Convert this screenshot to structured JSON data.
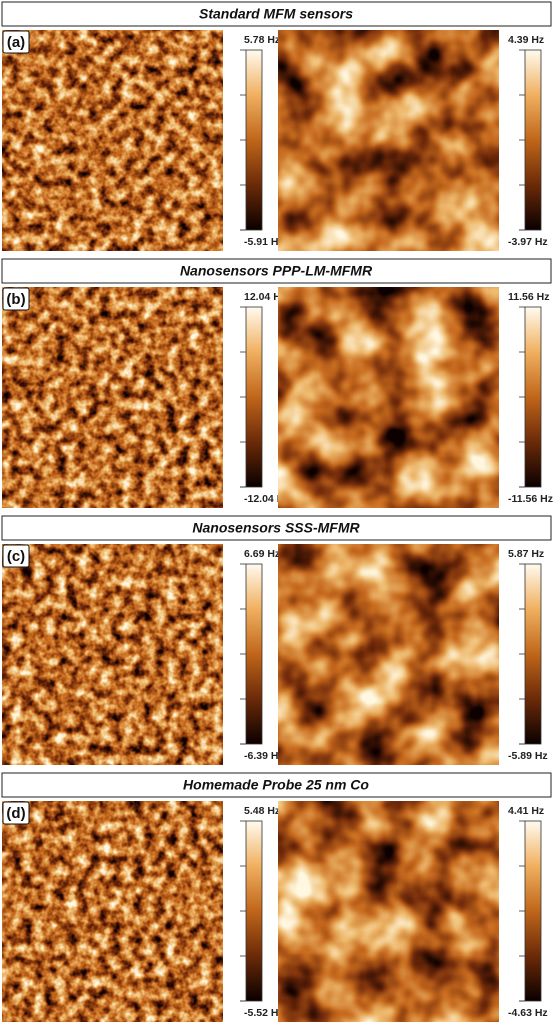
{
  "panels": [
    {
      "title": "Standard MFM sensors",
      "label": "(a)",
      "left": {
        "max": "5.78 Hz",
        "min": "-5.91 Hz"
      },
      "right": {
        "max": "4.39 Hz",
        "min": "-3.97 Hz"
      }
    },
    {
      "title": "Nanosensors PPP-LM-MFMR",
      "label": "(b)",
      "left": {
        "max": "12.04 Hz",
        "min": "-12.04 Hz"
      },
      "right": {
        "max": "11.56 Hz",
        "min": "-11.56 Hz"
      }
    },
    {
      "title": "Nanosensors SSS-MFMR",
      "label": "(c)",
      "left": {
        "max": "6.69 Hz",
        "min": "-6.39 Hz"
      },
      "right": {
        "max": "5.87 Hz",
        "min": "-5.89 Hz"
      }
    },
    {
      "title": "Homemade Probe 25 nm Co",
      "label": "(d)",
      "left": {
        "max": "5.48 Hz",
        "min": "-5.52 Hz"
      },
      "right": {
        "max": "4.41 Hz",
        "min": "-4.63 Hz"
      }
    }
  ]
}
